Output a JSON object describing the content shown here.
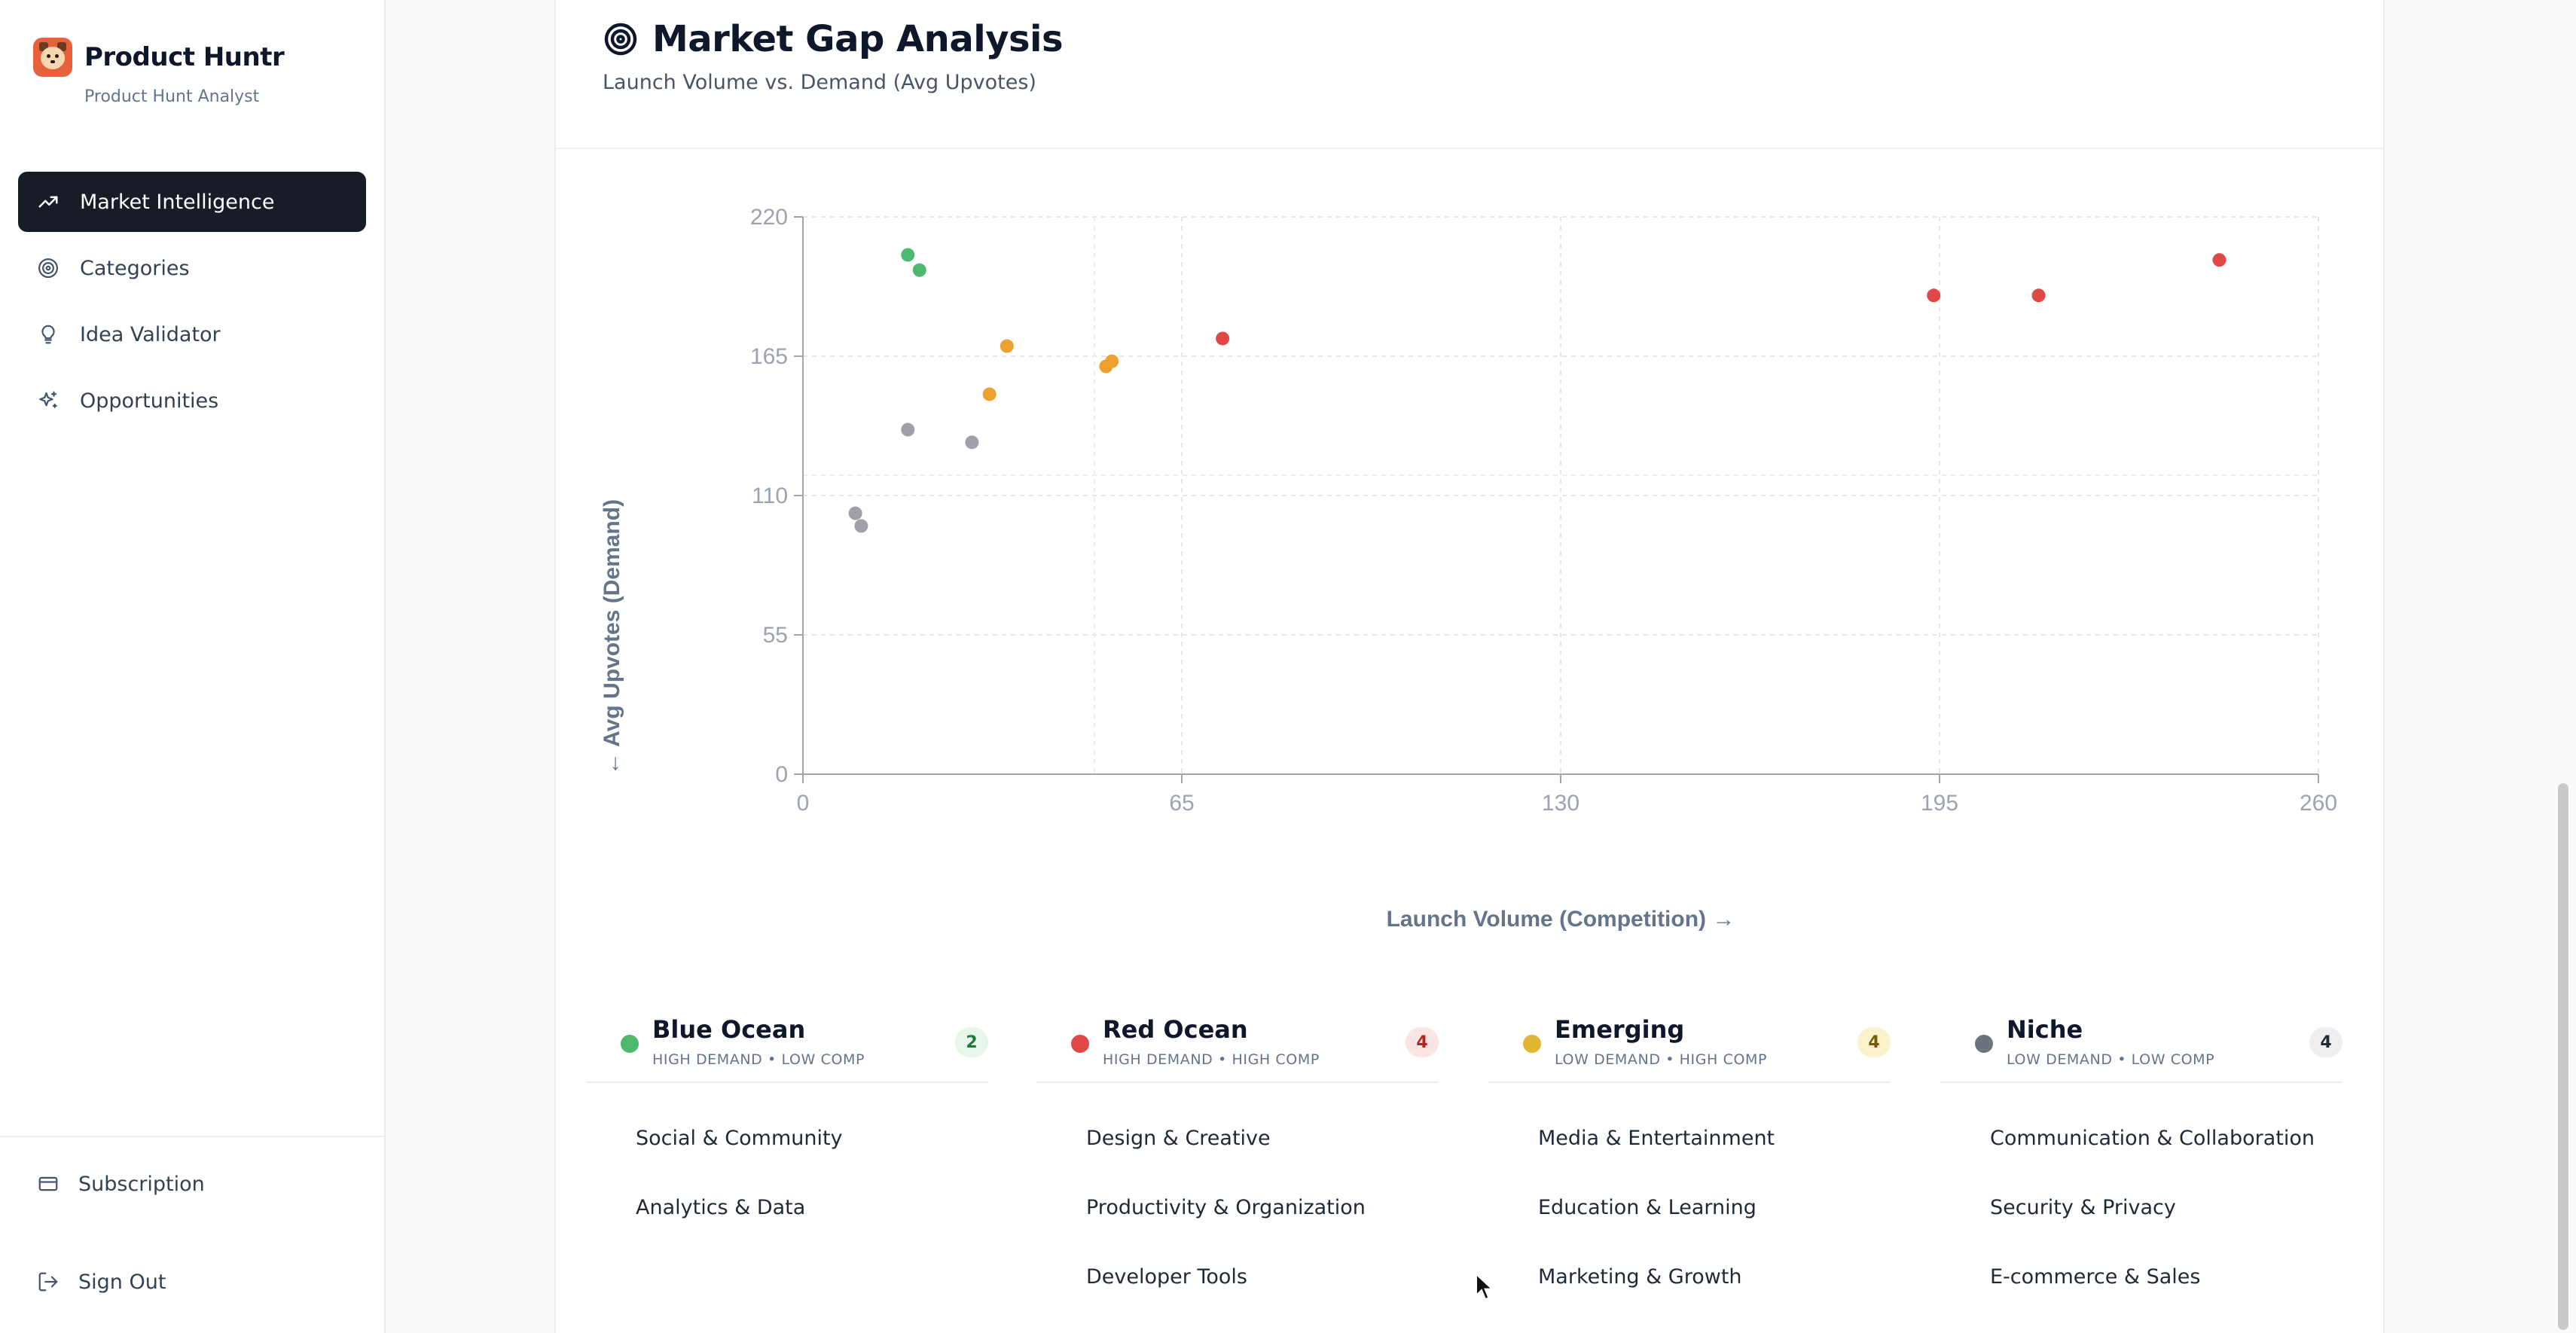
{
  "sidebar": {
    "brand_title": "Product Huntr",
    "brand_subtitle": "Product Hunt Analyst",
    "nav": [
      {
        "label": "Market Intelligence",
        "icon": "trending-up-icon",
        "active": true
      },
      {
        "label": "Categories",
        "icon": "target-icon",
        "active": false
      },
      {
        "label": "Idea Validator",
        "icon": "lightbulb-icon",
        "active": false
      },
      {
        "label": "Opportunities",
        "icon": "sparkles-icon",
        "active": false
      }
    ],
    "subscription_label": "Subscription",
    "signout_label": "Sign Out"
  },
  "panel": {
    "title": "Market Gap Analysis",
    "subtitle": "Launch Volume vs. Demand (Avg Upvotes)"
  },
  "chart_data": {
    "type": "scatter",
    "xlabel": "Launch Volume (Competition) →",
    "ylabel": "← Avg Upvotes (Demand)",
    "xlim": [
      0,
      260
    ],
    "ylim": [
      0,
      220
    ],
    "xticks": [
      "0",
      "65",
      "130",
      "195",
      "260"
    ],
    "yticks": [
      "0",
      "55",
      "110",
      "165",
      "220"
    ],
    "grid": true,
    "series": [
      {
        "name": "Blue Ocean",
        "color": "#4cb96f",
        "points": [
          [
            18,
            205
          ],
          [
            20,
            199
          ]
        ]
      },
      {
        "name": "Red Ocean",
        "color": "#e04848",
        "points": [
          [
            72,
            172
          ],
          [
            194,
            189
          ],
          [
            212,
            189
          ],
          [
            243,
            203
          ]
        ]
      },
      {
        "name": "Emerging",
        "color": "#eea02f",
        "points": [
          [
            35,
            169
          ],
          [
            32,
            150
          ],
          [
            52,
            161
          ],
          [
            53,
            163
          ]
        ]
      },
      {
        "name": "Niche",
        "color": "#a0a0a8",
        "points": [
          [
            18,
            136
          ],
          [
            29,
            131
          ],
          [
            9,
            103
          ],
          [
            10,
            98
          ]
        ]
      }
    ]
  },
  "legend": [
    {
      "name": "Blue Ocean",
      "desc": "HIGH DEMAND • LOW COMP",
      "count": "2",
      "dot": "#4cb96f",
      "badge_bg": "#e6f6ea",
      "badge_fg": "#1f7a3b",
      "items": [
        "Social & Community",
        "Analytics & Data"
      ]
    },
    {
      "name": "Red Ocean",
      "desc": "HIGH DEMAND • HIGH COMP",
      "count": "4",
      "dot": "#e04848",
      "badge_bg": "#fbe4e4",
      "badge_fg": "#b42323",
      "items": [
        "Design & Creative",
        "Productivity & Organization",
        "Developer Tools"
      ]
    },
    {
      "name": "Emerging",
      "desc": "LOW DEMAND • HIGH COMP",
      "count": "4",
      "dot": "#e0b531",
      "badge_bg": "#fbf2cc",
      "badge_fg": "#7a5a00",
      "items": [
        "Media & Entertainment",
        "Education & Learning",
        "Marketing & Growth"
      ]
    },
    {
      "name": "Niche",
      "desc": "LOW DEMAND • LOW COMP",
      "count": "4",
      "dot": "#6b7280",
      "badge_bg": "#eeeef1",
      "badge_fg": "#1f2937",
      "items": [
        "Communication & Collaboration",
        "Security & Privacy",
        "E-commerce & Sales"
      ]
    }
  ]
}
